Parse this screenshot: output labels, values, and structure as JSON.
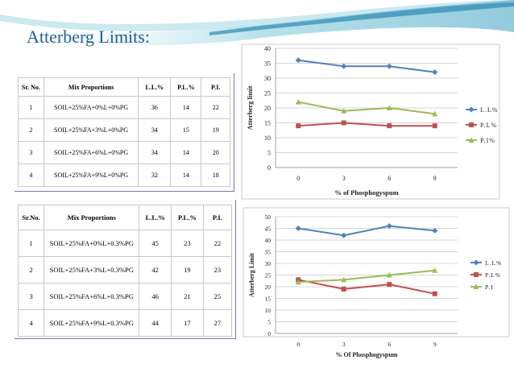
{
  "slide": {
    "title": "Atterberg Limits:"
  },
  "table1": {
    "headers": [
      "Sr. No.",
      "Mix Proportions",
      "L.L.%",
      "P.L.%",
      "P.I."
    ],
    "rows": [
      [
        "1",
        "SOIL+25%FA+0%L+0%PG",
        "36",
        "14",
        "22"
      ],
      [
        "2",
        "SOIL+25%FA+3%L+0%PG",
        "34",
        "15",
        "19"
      ],
      [
        "3",
        "SOIL+25%FA+6%L+0%PG",
        "34",
        "14",
        "20"
      ],
      [
        "4",
        "SOIL+25%FA+9%L+0%PG",
        "32",
        "14",
        "18"
      ]
    ]
  },
  "table2": {
    "headers": [
      "Sr.No.",
      "Mix Proportions",
      "L.L.%",
      "P.L.%",
      "P.I."
    ],
    "rows": [
      [
        "1",
        "SOIL+25%FA+0%L+0.3%PG",
        "45",
        "23",
        "22"
      ],
      [
        "2",
        "SOIL+25%FA+3%L+0.3%PG",
        "42",
        "19",
        "23"
      ],
      [
        "3",
        "SOIL+25%FA+6%L+0.3%PG",
        "46",
        "21",
        "25"
      ],
      [
        "4",
        "SOIL+25%FA+9%L+0.3%PG",
        "44",
        "17",
        "27"
      ]
    ]
  },
  "colors": {
    "ll": "#4f81bd",
    "pl": "#c0504d",
    "pi": "#9bbb59",
    "title": "#1f5f99"
  },
  "chart_data": [
    {
      "type": "line",
      "categories": [
        "0",
        "3",
        "6",
        "9"
      ],
      "xlabel": "% of Phosphogyspum",
      "ylabel": "Atterberg limit",
      "ylim": [
        0,
        40
      ],
      "yticks": [
        "0",
        "5",
        "10",
        "15",
        "20",
        "25",
        "30",
        "35",
        "40"
      ],
      "grid": true,
      "legend": "right",
      "series": [
        {
          "name": "L.L%",
          "values": [
            36,
            34,
            34,
            32
          ],
          "color": "#4f81bd",
          "marker": "diamond"
        },
        {
          "name": "P.L%",
          "values": [
            14,
            15,
            14,
            14
          ],
          "color": "#c0504d",
          "marker": "square"
        },
        {
          "name": "P.I%",
          "values": [
            22,
            19,
            20,
            18
          ],
          "color": "#9bbb59",
          "marker": "triangle"
        }
      ]
    },
    {
      "type": "line",
      "categories": [
        "0",
        "3",
        "6",
        "9"
      ],
      "xlabel": "% Of Phosphogyspum",
      "ylabel": "Atterberg Limit",
      "ylim": [
        0,
        50
      ],
      "yticks": [
        "0",
        "5",
        "10",
        "15",
        "20",
        "25",
        "30",
        "35",
        "40",
        "45",
        "50"
      ],
      "grid": true,
      "legend": "right",
      "series": [
        {
          "name": "L.L%",
          "values": [
            45,
            42,
            46,
            44
          ],
          "color": "#4f81bd",
          "marker": "diamond"
        },
        {
          "name": "P.L%",
          "values": [
            23,
            19,
            21,
            17
          ],
          "color": "#c0504d",
          "marker": "square"
        },
        {
          "name": "P.I",
          "values": [
            22,
            23,
            25,
            27
          ],
          "color": "#9bbb59",
          "marker": "triangle"
        }
      ]
    }
  ]
}
